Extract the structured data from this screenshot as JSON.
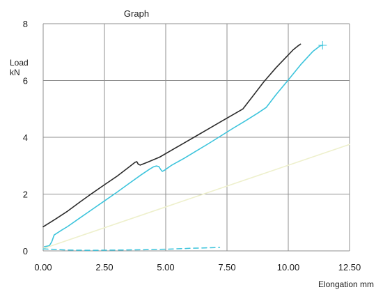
{
  "chart_data": {
    "type": "line",
    "title": "Graph",
    "ylabel_line1": "Load",
    "ylabel_line2": "kN",
    "xlabel": "Elongation mm",
    "xlim": [
      0,
      12.5
    ],
    "ylim": [
      0,
      8
    ],
    "x_ticks": [
      "0.00",
      "2.50",
      "5.00",
      "7.50",
      "10.00",
      "12.50"
    ],
    "y_ticks": [
      "0",
      "2",
      "4",
      "6",
      "8"
    ],
    "grid": true,
    "series": [
      {
        "color": "#2b2b2b",
        "style": "solid",
        "points": [
          [
            0.0,
            0.85
          ],
          [
            0.5,
            1.12
          ],
          [
            1.0,
            1.4
          ],
          [
            1.5,
            1.72
          ],
          [
            2.0,
            2.03
          ],
          [
            2.5,
            2.33
          ],
          [
            3.0,
            2.62
          ],
          [
            3.5,
            2.95
          ],
          [
            3.75,
            3.12
          ],
          [
            3.82,
            3.14
          ],
          [
            3.88,
            3.05
          ],
          [
            3.96,
            3.02
          ],
          [
            4.25,
            3.12
          ],
          [
            4.75,
            3.3
          ],
          [
            5.25,
            3.55
          ],
          [
            5.75,
            3.8
          ],
          [
            6.25,
            4.05
          ],
          [
            6.75,
            4.3
          ],
          [
            7.25,
            4.55
          ],
          [
            7.75,
            4.8
          ],
          [
            8.15,
            5.0
          ],
          [
            8.6,
            5.5
          ],
          [
            9.0,
            5.95
          ],
          [
            9.5,
            6.45
          ],
          [
            10.0,
            6.9
          ],
          [
            10.2,
            7.08
          ],
          [
            10.4,
            7.22
          ],
          [
            10.5,
            7.28
          ]
        ]
      },
      {
        "color": "#3cc4dc",
        "style": "solid",
        "points": [
          [
            0.05,
            0.15
          ],
          [
            0.25,
            0.18
          ],
          [
            0.35,
            0.32
          ],
          [
            0.45,
            0.56
          ],
          [
            0.75,
            0.73
          ],
          [
            1.0,
            0.86
          ],
          [
            1.5,
            1.16
          ],
          [
            2.0,
            1.46
          ],
          [
            2.5,
            1.76
          ],
          [
            3.0,
            2.06
          ],
          [
            3.5,
            2.37
          ],
          [
            4.0,
            2.68
          ],
          [
            4.35,
            2.88
          ],
          [
            4.5,
            2.96
          ],
          [
            4.62,
            2.99
          ],
          [
            4.72,
            2.97
          ],
          [
            4.8,
            2.86
          ],
          [
            4.86,
            2.8
          ],
          [
            4.95,
            2.84
          ],
          [
            5.25,
            3.02
          ],
          [
            5.75,
            3.26
          ],
          [
            6.25,
            3.52
          ],
          [
            6.75,
            3.78
          ],
          [
            7.25,
            4.05
          ],
          [
            7.75,
            4.32
          ],
          [
            8.25,
            4.58
          ],
          [
            8.75,
            4.85
          ],
          [
            9.1,
            5.05
          ],
          [
            9.5,
            5.5
          ],
          [
            10.0,
            6.02
          ],
          [
            10.5,
            6.55
          ],
          [
            11.0,
            7.02
          ],
          [
            11.3,
            7.22
          ],
          [
            11.4,
            7.24
          ]
        ]
      },
      {
        "color": "#eef0cc",
        "style": "solid",
        "points": [
          [
            0.0,
            0.08
          ],
          [
            12.5,
            3.75
          ]
        ]
      },
      {
        "color": "#3cc4dc",
        "style": "dashed",
        "points": [
          [
            0.0,
            0.07
          ],
          [
            1.0,
            0.03
          ],
          [
            2.0,
            0.02
          ],
          [
            3.0,
            0.03
          ],
          [
            4.0,
            0.04
          ],
          [
            5.0,
            0.06
          ],
          [
            6.0,
            0.09
          ],
          [
            7.2,
            0.12
          ]
        ]
      }
    ]
  }
}
